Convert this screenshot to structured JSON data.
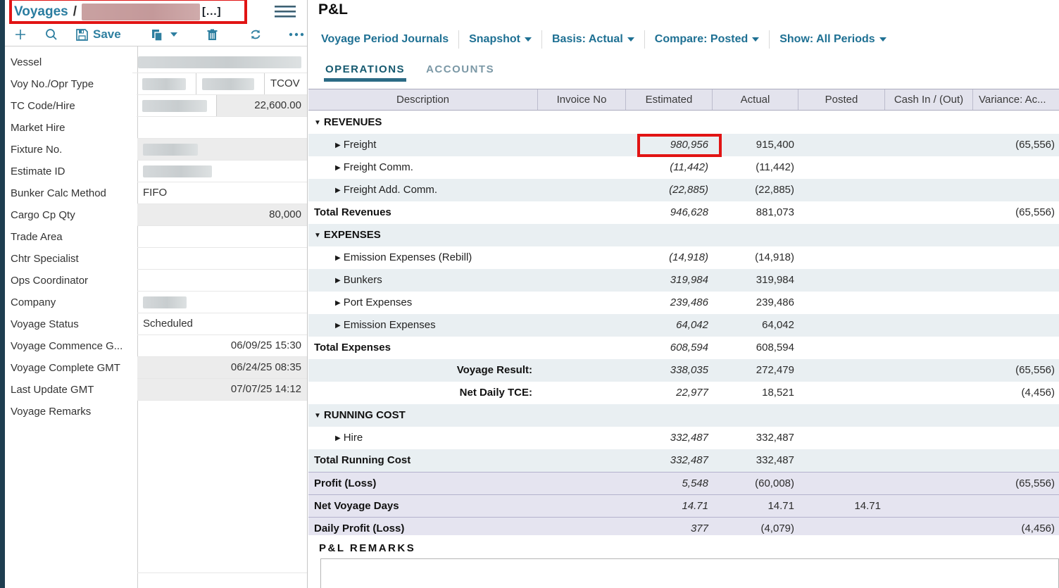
{
  "colors": {
    "brand_teal": "#2e7fa0",
    "annotation_red": "#e11414",
    "active_tab": "#15596f"
  },
  "left_panel": {
    "title": "Voyages",
    "separator": "/",
    "truncation": "[...]",
    "toolbar": {
      "save_label": "Save"
    },
    "fields": [
      {
        "label": "Vessel",
        "values": [
          ""
        ]
      },
      {
        "label": "Voy No./Opr Type",
        "values": [
          "",
          "",
          "TCOV"
        ]
      },
      {
        "label": "TC Code/Hire",
        "values": [
          "",
          "22,600.00"
        ]
      },
      {
        "label": "Market Hire",
        "values": [
          ""
        ]
      },
      {
        "label": "Fixture No.",
        "values": [
          ""
        ]
      },
      {
        "label": "Estimate ID",
        "values": [
          ""
        ]
      },
      {
        "label": "Bunker Calc Method",
        "values": [
          "FIFO"
        ]
      },
      {
        "label": "Cargo Cp Qty",
        "values": [
          "80,000"
        ]
      },
      {
        "label": "Trade Area",
        "values": [
          ""
        ]
      },
      {
        "label": "Chtr Specialist",
        "values": [
          ""
        ]
      },
      {
        "label": "Ops Coordinator",
        "values": [
          ""
        ]
      },
      {
        "label": "Company",
        "values": [
          ""
        ]
      },
      {
        "label": "Voyage Status",
        "values": [
          "Scheduled"
        ]
      },
      {
        "label": "Voyage Commence G...",
        "values": [
          "06/09/25 15:30"
        ]
      },
      {
        "label": "Voyage Complete GMT",
        "values": [
          "06/24/25 08:35"
        ]
      },
      {
        "label": "Last Update GMT",
        "values": [
          "07/07/25 14:12"
        ]
      },
      {
        "label": "Voyage Remarks",
        "values": [
          ""
        ]
      }
    ]
  },
  "pnl": {
    "title": "P&L",
    "toolbar": [
      {
        "label": "Voyage Period Journals",
        "caret": false
      },
      {
        "label": "Snapshot",
        "caret": true
      },
      {
        "label": "Basis: Actual",
        "caret": true
      },
      {
        "label": "Compare: Posted",
        "caret": true
      },
      {
        "label": "Show: All Periods",
        "caret": true
      }
    ],
    "tabs": [
      {
        "label": "OPERATIONS",
        "active": true
      },
      {
        "label": "ACCOUNTS",
        "active": false
      }
    ],
    "table": {
      "columns": [
        "Description",
        "Invoice No",
        "Estimated",
        "Actual",
        "Posted",
        "Cash In / (Out)",
        "Variance: Ac..."
      ],
      "rows": [
        {
          "type": "section",
          "label": "REVENUES"
        },
        {
          "type": "detail",
          "label": "Freight",
          "estimated": "980,956",
          "actual": "915,400",
          "variance": "(65,556)",
          "annotated": true
        },
        {
          "type": "detail",
          "label": "Freight Comm.",
          "estimated": "(11,442)",
          "actual": "(11,442)"
        },
        {
          "type": "detail",
          "label": "Freight Add. Comm.",
          "estimated": "(22,885)",
          "actual": "(22,885)"
        },
        {
          "type": "total",
          "label": "Total Revenues",
          "estimated": "946,628",
          "actual": "881,073",
          "variance": "(65,556)"
        },
        {
          "type": "section",
          "label": "EXPENSES"
        },
        {
          "type": "detail",
          "label": "Emission Expenses (Rebill)",
          "estimated": "(14,918)",
          "actual": "(14,918)"
        },
        {
          "type": "detail",
          "label": "Bunkers",
          "estimated": "319,984",
          "actual": "319,984"
        },
        {
          "type": "detail",
          "label": "Port Expenses",
          "estimated": "239,486",
          "actual": "239,486"
        },
        {
          "type": "detail",
          "label": "Emission Expenses",
          "estimated": "64,042",
          "actual": "64,042"
        },
        {
          "type": "total",
          "label": "Total Expenses",
          "estimated": "608,594",
          "actual": "608,594"
        },
        {
          "type": "result",
          "label": "Voyage Result:",
          "estimated": "338,035",
          "actual": "272,479",
          "variance": "(65,556)"
        },
        {
          "type": "result",
          "label": "Net Daily TCE:",
          "estimated": "22,977",
          "actual": "18,521",
          "variance": "(4,456)"
        },
        {
          "type": "section",
          "label": "RUNNING COST"
        },
        {
          "type": "detail",
          "label": "Hire",
          "estimated": "332,487",
          "actual": "332,487"
        },
        {
          "type": "total",
          "label": "Total Running Cost",
          "estimated": "332,487",
          "actual": "332,487"
        },
        {
          "type": "bottom",
          "label": "Profit (Loss)",
          "estimated": "5,548",
          "actual": "(60,008)",
          "variance": "(65,556)"
        },
        {
          "type": "bottom",
          "label": "Net Voyage Days",
          "estimated": "14.71",
          "actual": "14.71",
          "posted": "14.71"
        },
        {
          "type": "bottom",
          "label": "Daily Profit (Loss)",
          "estimated": "377",
          "actual": "(4,079)",
          "variance": "(4,456)"
        }
      ]
    },
    "remarks_title": "P&L REMARKS"
  }
}
